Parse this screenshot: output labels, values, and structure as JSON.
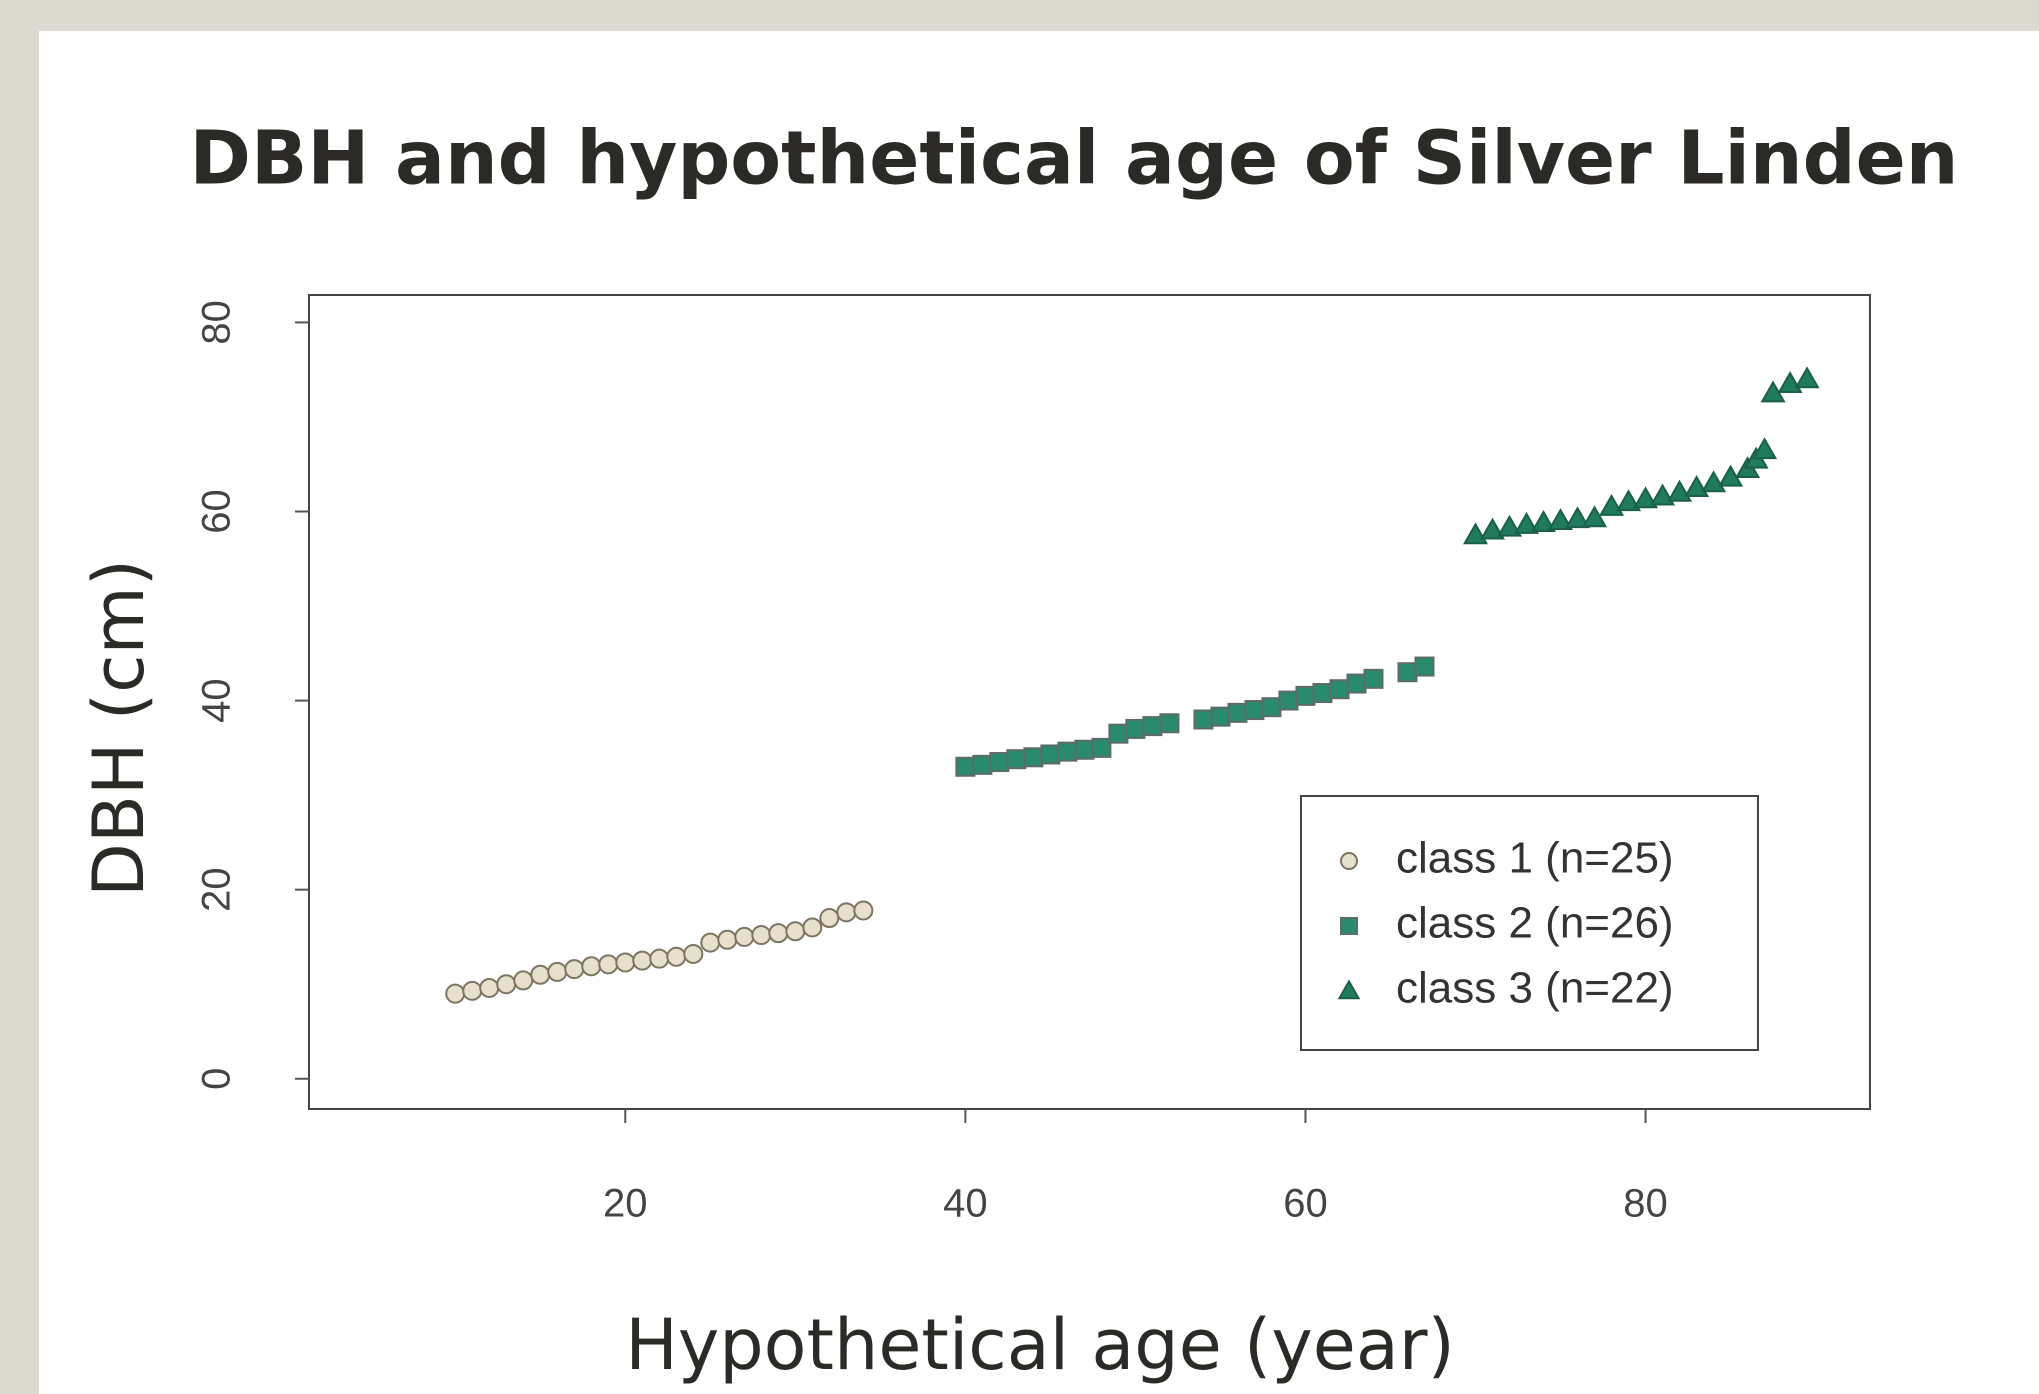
{
  "chart_data": {
    "type": "scatter",
    "title": "DBH and hypothetical age of Silver Linden",
    "x_label": "Hypothetical age (year)",
    "y_label": "DBH (cm)",
    "xlim": [
      1.4,
      93.2
    ],
    "ylim": [
      -3.2,
      82.9
    ],
    "xticks": [
      20,
      40,
      60,
      80
    ],
    "yticks": [
      0,
      20,
      40,
      60,
      80
    ],
    "legend": "bottom-right",
    "series": [
      {
        "name": "class 1 (n=25)",
        "shape": "circle",
        "color": "#e6e0cc",
        "x": [
          10,
          11,
          12,
          13,
          14,
          15,
          16,
          17,
          18,
          19,
          20,
          21,
          22,
          23,
          24,
          25,
          26,
          27,
          28,
          29,
          30,
          31,
          32,
          33,
          34
        ],
        "values": [
          9.0,
          9.3,
          9.6,
          10.0,
          10.4,
          11.0,
          11.3,
          11.6,
          11.9,
          12.1,
          12.3,
          12.5,
          12.7,
          12.9,
          13.2,
          14.4,
          14.7,
          15.0,
          15.2,
          15.4,
          15.6,
          16.0,
          17.0,
          17.6,
          17.8
        ]
      },
      {
        "name": "class 2 (n=26)",
        "shape": "square",
        "color": "#2a8a6e",
        "x": [
          40,
          41,
          42,
          43,
          44,
          45,
          46,
          47,
          48,
          49,
          50,
          51,
          52,
          54,
          55,
          56,
          57,
          58,
          59,
          60,
          61,
          62,
          63,
          64,
          66,
          67
        ],
        "values": [
          33.0,
          33.2,
          33.5,
          33.8,
          34.0,
          34.3,
          34.6,
          34.8,
          35.0,
          36.5,
          37.0,
          37.3,
          37.6,
          38.0,
          38.3,
          38.7,
          39.0,
          39.3,
          40.0,
          40.5,
          40.8,
          41.2,
          41.8,
          42.3,
          43.0,
          43.6
        ]
      },
      {
        "name": "class 3 (n=22)",
        "shape": "triangle",
        "color": "#1f7a5e",
        "x": [
          70,
          71,
          72,
          73,
          74,
          75,
          76,
          77,
          78,
          79,
          80,
          81,
          82,
          83,
          84,
          85,
          86,
          86.5,
          87,
          87.5,
          88.5,
          89.5
        ],
        "values": [
          57.5,
          58.0,
          58.3,
          58.6,
          58.8,
          59.0,
          59.2,
          59.3,
          60.5,
          61.0,
          61.3,
          61.6,
          62.0,
          62.5,
          63.0,
          63.6,
          64.5,
          65.5,
          66.5,
          72.5,
          73.5,
          74.0
        ]
      }
    ]
  }
}
